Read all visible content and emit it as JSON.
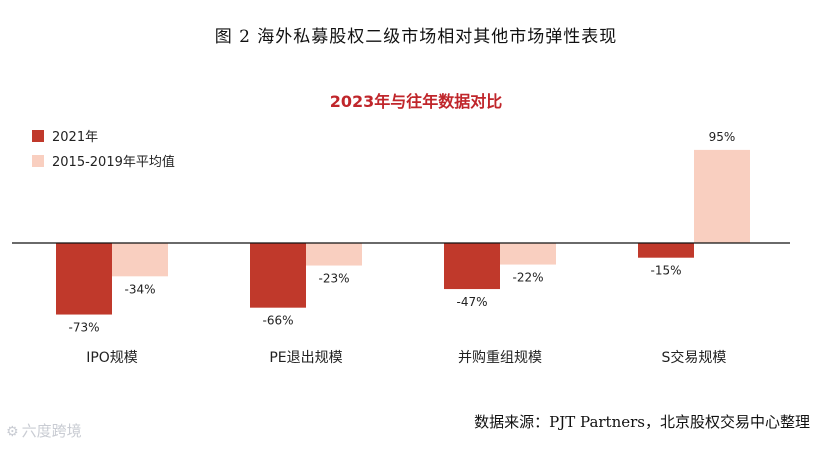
{
  "figure_title": "图 2 海外私募股权二级市场相对其他市场弹性表现",
  "source_note": "数据来源：PJT Partners，北京股权交易中心整理",
  "watermark": "六度跨境",
  "colors": {
    "series_2021": "#c0392b",
    "series_avg": "#f9cfc0",
    "chart_title": "#c0262b",
    "axis": "#111111"
  },
  "chart_data": {
    "type": "bar",
    "title": "2023年与往年数据对比",
    "categories": [
      "IPO规模",
      "PE退出规模",
      "并购重组规模",
      "S交易规模"
    ],
    "series": [
      {
        "name": "2021年",
        "values": [
          -73,
          -66,
          -47,
          -15
        ],
        "labels": [
          "-73%",
          "-66%",
          "-47%",
          "-15%"
        ]
      },
      {
        "name": "2015-2019年平均值",
        "values": [
          -34,
          -23,
          -22,
          95
        ],
        "labels": [
          "-34%",
          "-23%",
          "-22%",
          "95%"
        ]
      }
    ],
    "unit": "%",
    "legend_position": "top-left",
    "grid": false
  }
}
